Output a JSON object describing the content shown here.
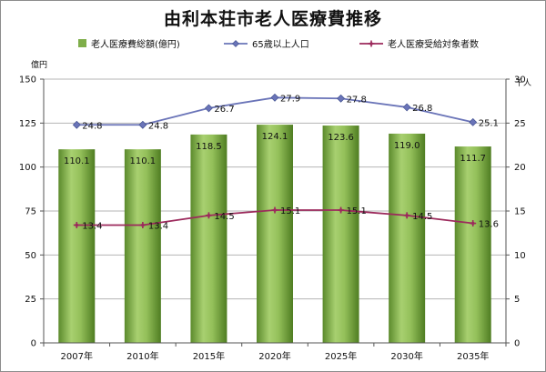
{
  "chart_data": {
    "type": "bar",
    "title": "由利本荘市老人医療費推移",
    "categories": [
      "2007年",
      "2010年",
      "2015年",
      "2020年",
      "2025年",
      "2030年",
      "2035年"
    ],
    "left_axis": {
      "unit": "億円",
      "ylim": [
        0,
        150
      ],
      "ticks": [
        0,
        25,
        50,
        75,
        100,
        125,
        150
      ]
    },
    "right_axis": {
      "unit": "千人",
      "ylim": [
        0,
        30
      ],
      "ticks": [
        0,
        5,
        10,
        15,
        20,
        25,
        30
      ]
    },
    "grid": true,
    "legend_position": "top",
    "series": [
      {
        "name": "老人医療費総額(億円)",
        "kind": "bar",
        "axis": "left",
        "color": "#7fae4a",
        "values": [
          110.1,
          110.1,
          118.5,
          124.1,
          123.6,
          119.0,
          111.7
        ],
        "labels": [
          "110.1",
          "110.1",
          "118.5",
          "124.1",
          "123.6",
          "119.0",
          "111.7"
        ]
      },
      {
        "name": "65歳以上人口",
        "kind": "line",
        "axis": "right",
        "color": "#6a74b8",
        "marker": "diamond",
        "values": [
          24.8,
          24.8,
          26.7,
          27.9,
          27.8,
          26.8,
          25.1
        ],
        "labels": [
          "24.8",
          "24.8",
          "26.7",
          "27.9",
          "27.8",
          "26.8",
          "25.1"
        ]
      },
      {
        "name": "老人医療受給対象者数",
        "kind": "line",
        "axis": "right",
        "color": "#9c2a5c",
        "marker": "star",
        "values": [
          13.4,
          13.4,
          14.5,
          15.1,
          15.1,
          14.5,
          13.6
        ],
        "labels": [
          "13.4",
          "13.4",
          "14.5",
          "15.1",
          "15.1",
          "14.5",
          "13.6"
        ]
      }
    ]
  }
}
